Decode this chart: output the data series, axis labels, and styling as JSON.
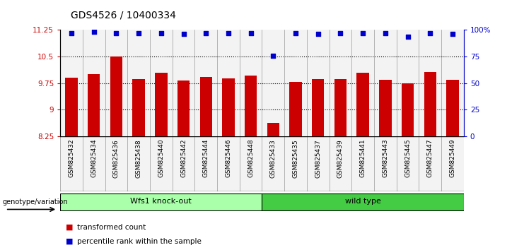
{
  "title": "GDS4526 / 10400334",
  "samples": [
    "GSM825432",
    "GSM825434",
    "GSM825436",
    "GSM825438",
    "GSM825440",
    "GSM825442",
    "GSM825444",
    "GSM825446",
    "GSM825448",
    "GSM825433",
    "GSM825435",
    "GSM825437",
    "GSM825439",
    "GSM825441",
    "GSM825443",
    "GSM825445",
    "GSM825447",
    "GSM825449"
  ],
  "bar_values": [
    9.9,
    10.0,
    10.5,
    9.87,
    10.05,
    9.83,
    9.93,
    9.88,
    9.97,
    8.63,
    9.79,
    9.87,
    9.87,
    10.04,
    9.85,
    9.75,
    10.07,
    9.84
  ],
  "percentile_values": [
    97,
    98,
    97,
    97,
    97,
    96,
    97,
    97,
    97,
    76,
    97,
    96,
    97,
    97,
    97,
    94,
    97,
    96
  ],
  "bar_color": "#cc0000",
  "percentile_color": "#0000cc",
  "ylim_left": [
    8.25,
    11.25
  ],
  "ylim_right": [
    0,
    100
  ],
  "yticks_left": [
    8.25,
    9.0,
    9.75,
    10.5,
    11.25
  ],
  "yticks_left_labels": [
    "8.25",
    "9",
    "9.75",
    "10.5",
    "11.25"
  ],
  "yticks_right": [
    0,
    25,
    50,
    75,
    100
  ],
  "yticks_right_labels": [
    "0",
    "25",
    "50",
    "75",
    "100%"
  ],
  "hlines": [
    9.0,
    9.75,
    10.5
  ],
  "group1_label": "Wfs1 knock-out",
  "group2_label": "wild type",
  "group1_color": "#aaffaa",
  "group2_color": "#44cc44",
  "group1_count": 9,
  "group2_count": 9,
  "genotype_label": "genotype/variation",
  "legend_bar_label": "transformed count",
  "legend_pct_label": "percentile rank within the sample",
  "bg_color": "#ffffff",
  "col_bg_color": "#dddddd",
  "tick_color_left": "#cc0000",
  "tick_color_right": "#0000cc",
  "bar_width": 0.55,
  "title_fontsize": 10,
  "label_fontsize": 7.5,
  "group_fontsize": 8
}
